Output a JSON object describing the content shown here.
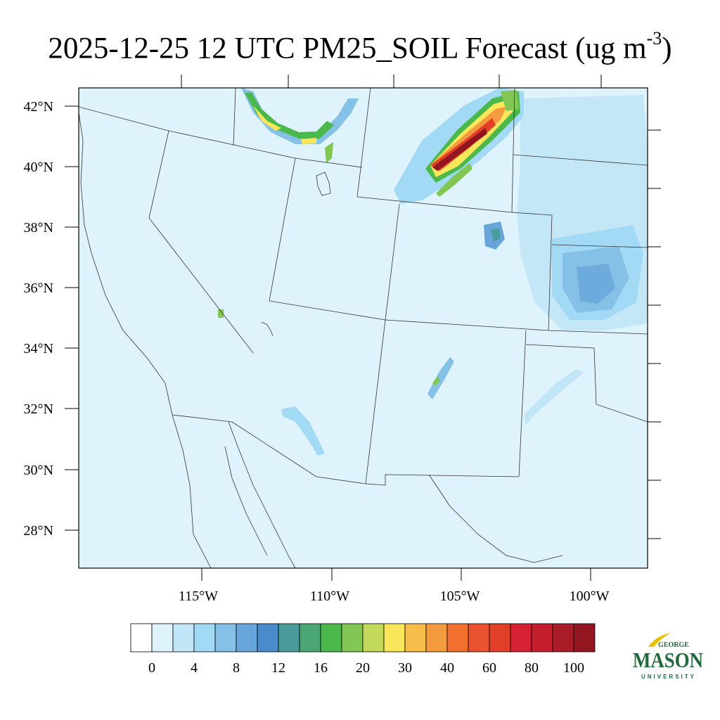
{
  "title": {
    "main": "2025-12-25 12 UTC PM25_SOIL Forecast (ug m",
    "sup": "-3",
    "close": ")"
  },
  "axes": {
    "lat_labels": [
      "42°N",
      "40°N",
      "38°N",
      "36°N",
      "34°N",
      "32°N",
      "30°N",
      "28°N"
    ],
    "lon_labels": [
      "115°W",
      "110°W",
      "105°W",
      "100°W"
    ]
  },
  "colorbar": {
    "labels": [
      "0",
      "4",
      "8",
      "12",
      "16",
      "20",
      "30",
      "40",
      "60",
      "80",
      "100"
    ],
    "colors": [
      "#ffffff",
      "#def3fb",
      "#c1e6f7",
      "#a2d9f4",
      "#85c0e6",
      "#67a5da",
      "#4a8bcc",
      "#4a9b9b",
      "#4aa673",
      "#4ab84a",
      "#82c654",
      "#c3d95a",
      "#f9e65a",
      "#f7bd4a",
      "#f59b3f",
      "#f2712e",
      "#ea5230",
      "#e23f28",
      "#d52131",
      "#c41e2c",
      "#aa1c28",
      "#921620"
    ]
  },
  "logo": {
    "line1": "GEORGE",
    "line2": "MASON",
    "line3": "UNIVERSITY"
  }
}
